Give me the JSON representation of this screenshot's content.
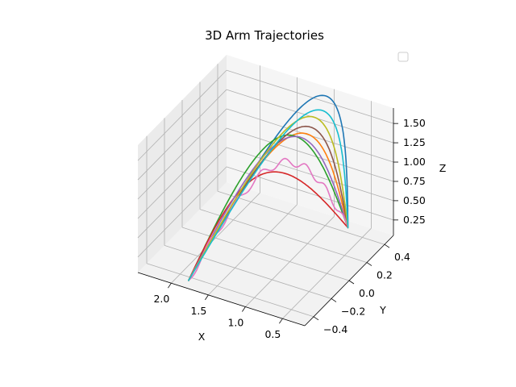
{
  "chart_data": {
    "type": "line3d",
    "title": "3D Arm Trajectories",
    "xlabel": "X",
    "ylabel": "Y",
    "zlabel": "Z",
    "xlim": [
      0.2,
      2.45
    ],
    "ylim": [
      -0.5,
      0.5
    ],
    "zlim": [
      0.05,
      1.7
    ],
    "xticks": [
      "0.5",
      "1.0",
      "1.5",
      "2.0"
    ],
    "xtick_values": [
      0.5,
      1.0,
      1.5,
      2.0
    ],
    "yticks": [
      "0.4",
      "0.2",
      "0.0",
      "−0.2",
      "−0.4"
    ],
    "ytick_values": [
      0.4,
      0.2,
      0.0,
      -0.2,
      -0.4
    ],
    "zticks": [
      "0.25",
      "0.50",
      "0.75",
      "1.00",
      "1.25",
      "1.50"
    ],
    "ztick_values": [
      0.25,
      0.5,
      0.75,
      1.0,
      1.25,
      1.5
    ],
    "grid": true,
    "legend": {
      "placement": "top-right",
      "entries": []
    },
    "colors": [
      "#1f77b4",
      "#ff7f0e",
      "#2ca02c",
      "#d62728",
      "#9467bd",
      "#8c564b",
      "#e377c2",
      "#7f7f7f",
      "#bcbd22",
      "#17becf"
    ],
    "series": [
      {
        "color": "#1f77b4",
        "start": [
          0.55,
          0.28,
          0.3
        ],
        "end": [
          1.85,
          -0.43,
          0.05
        ],
        "peak": 1.55,
        "bulge": 0.55,
        "wiggle": 0.0
      },
      {
        "color": "#ff7f0e",
        "start": [
          0.55,
          0.28,
          0.3
        ],
        "end": [
          1.85,
          -0.43,
          0.05
        ],
        "peak": 1.35,
        "bulge": 0.3,
        "wiggle": 0.0
      },
      {
        "color": "#2ca02c",
        "start": [
          0.55,
          0.28,
          0.3
        ],
        "end": [
          1.85,
          -0.43,
          0.05
        ],
        "peak": 1.5,
        "bulge": 0.15,
        "wiggle": 0.0
      },
      {
        "color": "#d62728",
        "start": [
          0.55,
          0.28,
          0.3
        ],
        "end": [
          1.85,
          -0.43,
          0.05
        ],
        "peak": 1.25,
        "bulge": -0.05,
        "wiggle": 0.0
      },
      {
        "color": "#9467bd",
        "start": [
          0.55,
          0.28,
          0.3
        ],
        "end": [
          1.85,
          -0.43,
          0.05
        ],
        "peak": 1.4,
        "bulge": 0.22,
        "wiggle": 0.0
      },
      {
        "color": "#8c564b",
        "start": [
          0.55,
          0.28,
          0.3
        ],
        "end": [
          1.85,
          -0.43,
          0.05
        ],
        "peak": 1.38,
        "bulge": 0.35,
        "wiggle": 0.0
      },
      {
        "color": "#e377c2",
        "start": [
          0.55,
          0.28,
          0.3
        ],
        "end": [
          1.85,
          -0.43,
          0.05
        ],
        "peak": 1.18,
        "bulge": 0.12,
        "wiggle": 0.05
      },
      {
        "color": "#bcbd22",
        "start": [
          0.55,
          0.28,
          0.3
        ],
        "end": [
          1.85,
          -0.43,
          0.05
        ],
        "peak": 1.45,
        "bulge": 0.4,
        "wiggle": 0.0
      },
      {
        "color": "#17becf",
        "start": [
          0.55,
          0.28,
          0.3
        ],
        "end": [
          1.85,
          -0.43,
          0.05
        ],
        "peak": 1.42,
        "bulge": 0.5,
        "wiggle": 0.0
      }
    ]
  }
}
